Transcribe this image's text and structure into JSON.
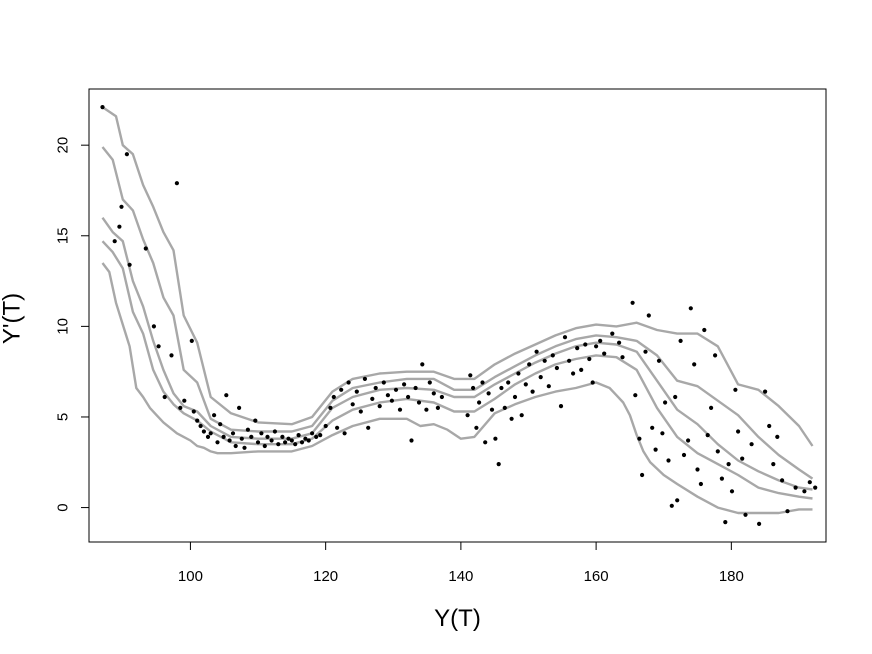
{
  "chart_data": {
    "type": "scatter",
    "title": "",
    "xlabel": "Y(T)",
    "ylabel": "Y'(T)",
    "xlim": [
      85,
      194
    ],
    "ylim": [
      -1.9,
      23.1
    ],
    "x_ticks": [
      100,
      120,
      140,
      160,
      180
    ],
    "y_ticks": [
      0,
      5,
      10,
      15,
      20
    ],
    "grid": false,
    "legend": "none",
    "colors": {
      "points": "#000000",
      "curves": "#a8a8a8"
    },
    "points": [
      [
        87,
        22.1
      ],
      [
        88.8,
        14.7
      ],
      [
        89.5,
        15.5
      ],
      [
        89.8,
        16.6
      ],
      [
        90.6,
        19.5
      ],
      [
        91,
        13.4
      ],
      [
        93.4,
        14.3
      ],
      [
        94.6,
        10
      ],
      [
        95.3,
        8.9
      ],
      [
        96.2,
        6.1
      ],
      [
        97.2,
        8.4
      ],
      [
        98,
        17.9
      ],
      [
        98.5,
        5.5
      ],
      [
        99.1,
        5.9
      ],
      [
        100.2,
        9.2
      ],
      [
        100.5,
        5.3
      ],
      [
        101,
        4.8
      ],
      [
        101.5,
        4.5
      ],
      [
        102,
        4.2
      ],
      [
        102.6,
        3.9
      ],
      [
        103,
        4.1
      ],
      [
        103.5,
        5.1
      ],
      [
        104,
        3.6
      ],
      [
        104.4,
        4.6
      ],
      [
        104.9,
        3.9
      ],
      [
        105.3,
        6.2
      ],
      [
        105.8,
        3.7
      ],
      [
        106.3,
        4.1
      ],
      [
        106.7,
        3.4
      ],
      [
        107.2,
        5.5
      ],
      [
        107.6,
        3.8
      ],
      [
        108,
        3.3
      ],
      [
        108.5,
        4.3
      ],
      [
        109,
        3.9
      ],
      [
        109.6,
        4.8
      ],
      [
        110,
        3.6
      ],
      [
        110.5,
        4.1
      ],
      [
        111,
        3.4
      ],
      [
        111.4,
        3.9
      ],
      [
        112,
        3.7
      ],
      [
        112.5,
        4.2
      ],
      [
        113,
        3.5
      ],
      [
        113.6,
        3.9
      ],
      [
        114,
        3.6
      ],
      [
        114.5,
        3.8
      ],
      [
        115,
        3.7
      ],
      [
        115.5,
        3.5
      ],
      [
        116,
        4
      ],
      [
        116.5,
        3.6
      ],
      [
        117,
        3.8
      ],
      [
        117.5,
        3.7
      ],
      [
        118,
        4.1
      ],
      [
        118.6,
        3.9
      ],
      [
        119.2,
        4
      ],
      [
        120,
        4.5
      ],
      [
        120.7,
        5.5
      ],
      [
        121.2,
        6.1
      ],
      [
        121.7,
        4.4
      ],
      [
        122.3,
        6.5
      ],
      [
        122.8,
        4.1
      ],
      [
        123.4,
        6.9
      ],
      [
        124,
        5.7
      ],
      [
        124.6,
        6.4
      ],
      [
        125.2,
        5.3
      ],
      [
        125.8,
        7.1
      ],
      [
        126.3,
        4.4
      ],
      [
        126.9,
        6
      ],
      [
        127.4,
        6.6
      ],
      [
        128,
        5.6
      ],
      [
        128.6,
        6.9
      ],
      [
        129.2,
        6.2
      ],
      [
        129.8,
        5.9
      ],
      [
        130.4,
        6.5
      ],
      [
        131,
        5.4
      ],
      [
        131.6,
        6.8
      ],
      [
        132.2,
        6.1
      ],
      [
        132.7,
        3.7
      ],
      [
        133.3,
        6.6
      ],
      [
        133.8,
        5.8
      ],
      [
        134.3,
        7.9
      ],
      [
        134.9,
        5.4
      ],
      [
        135.4,
        6.9
      ],
      [
        136,
        6.3
      ],
      [
        136.6,
        5.5
      ],
      [
        137.2,
        6.1
      ],
      [
        141,
        5.1
      ],
      [
        141.4,
        7.3
      ],
      [
        141.8,
        6.6
      ],
      [
        142.3,
        4.4
      ],
      [
        142.7,
        5.8
      ],
      [
        143.2,
        6.9
      ],
      [
        143.6,
        3.6
      ],
      [
        144.1,
        6.3
      ],
      [
        144.6,
        5.4
      ],
      [
        145.1,
        3.8
      ],
      [
        145.6,
        2.4
      ],
      [
        146,
        6.6
      ],
      [
        146.5,
        5.5
      ],
      [
        147,
        6.9
      ],
      [
        147.5,
        4.9
      ],
      [
        148,
        6.1
      ],
      [
        148.5,
        7.4
      ],
      [
        149,
        5.1
      ],
      [
        149.6,
        6.8
      ],
      [
        150.1,
        7.9
      ],
      [
        150.6,
        6.4
      ],
      [
        151.2,
        8.6
      ],
      [
        151.8,
        7.2
      ],
      [
        152.4,
        8.1
      ],
      [
        153,
        6.7
      ],
      [
        153.6,
        8.4
      ],
      [
        154.2,
        7.7
      ],
      [
        154.8,
        5.6
      ],
      [
        155.4,
        9.4
      ],
      [
        156,
        8.1
      ],
      [
        156.6,
        7.4
      ],
      [
        157.2,
        8.8
      ],
      [
        157.8,
        7.6
      ],
      [
        158.4,
        9
      ],
      [
        159,
        8.2
      ],
      [
        159.5,
        6.9
      ],
      [
        160,
        8.9
      ],
      [
        160.6,
        9.2
      ],
      [
        161.2,
        8.5
      ],
      [
        162.4,
        9.6
      ],
      [
        163.4,
        9.1
      ],
      [
        163.9,
        8.3
      ],
      [
        165.4,
        11.3
      ],
      [
        165.8,
        6.2
      ],
      [
        166.4,
        3.8
      ],
      [
        166.8,
        1.8
      ],
      [
        167.3,
        8.6
      ],
      [
        167.8,
        10.6
      ],
      [
        168.3,
        4.4
      ],
      [
        168.8,
        3.2
      ],
      [
        169.3,
        8.1
      ],
      [
        169.8,
        4.1
      ],
      [
        170.2,
        5.8
      ],
      [
        170.7,
        2.6
      ],
      [
        171.2,
        0.1
      ],
      [
        171.7,
        6.1
      ],
      [
        172,
        0.4
      ],
      [
        172.5,
        9.2
      ],
      [
        173,
        2.9
      ],
      [
        173.6,
        3.7
      ],
      [
        174,
        11
      ],
      [
        174.5,
        7.9
      ],
      [
        175,
        2.1
      ],
      [
        175.5,
        1.3
      ],
      [
        176,
        9.8
      ],
      [
        176.5,
        4
      ],
      [
        177,
        5.5
      ],
      [
        177.6,
        8.4
      ],
      [
        178,
        3.1
      ],
      [
        178.6,
        1.6
      ],
      [
        179.1,
        -0.8
      ],
      [
        179.6,
        2.4
      ],
      [
        180.1,
        0.9
      ],
      [
        180.6,
        6.5
      ],
      [
        181,
        4.2
      ],
      [
        181.6,
        2.7
      ],
      [
        182.1,
        -0.4
      ],
      [
        183,
        3.5
      ],
      [
        184.1,
        -0.9
      ],
      [
        185,
        6.4
      ],
      [
        185.6,
        4.5
      ],
      [
        186.2,
        2.4
      ],
      [
        186.8,
        3.9
      ],
      [
        187.5,
        1.5
      ],
      [
        188.3,
        -0.2
      ],
      [
        189.5,
        1.1
      ],
      [
        190.8,
        0.9
      ],
      [
        191.6,
        1.4
      ],
      [
        192.4,
        1.1
      ]
    ],
    "series": [
      {
        "x": [
          87,
          89,
          90,
          91.5,
          93,
          94.5,
          96,
          97.5,
          99,
          101,
          103,
          106,
          110,
          115,
          118,
          121,
          124,
          128,
          132,
          136,
          139,
          142,
          145,
          148,
          151,
          154,
          157,
          160,
          163,
          166,
          169,
          172,
          175,
          178,
          181,
          184,
          187,
          190,
          192
        ],
        "y": [
          22.1,
          21.6,
          20,
          19.5,
          17.8,
          16.6,
          15.2,
          14.2,
          10.6,
          9.1,
          6.1,
          5.2,
          4.7,
          4.6,
          5,
          6.4,
          7.1,
          7.4,
          7.5,
          7.5,
          7.1,
          7.1,
          7.9,
          8.5,
          9,
          9.5,
          9.9,
          10.1,
          10,
          10.2,
          9.8,
          9.6,
          9.6,
          8.9,
          6.8,
          6.5,
          5.6,
          4.5,
          3.4
        ]
      },
      {
        "x": [
          87,
          88.5,
          90,
          91.5,
          93,
          94.5,
          96,
          97.5,
          99,
          101,
          103,
          106,
          110,
          115,
          118,
          121,
          124,
          128,
          132,
          136,
          139,
          142,
          145,
          148,
          151,
          154,
          157,
          160,
          163,
          166,
          169,
          172,
          175,
          178,
          181,
          184,
          187,
          190,
          192
        ],
        "y": [
          19.9,
          19.2,
          17,
          16.4,
          14.8,
          13.5,
          11.6,
          10.6,
          7.6,
          6.9,
          4.9,
          4.3,
          4.2,
          4.2,
          4.5,
          5.9,
          6.6,
          6.9,
          7.1,
          7.1,
          6.5,
          6.5,
          7.2,
          7.8,
          8.4,
          8.9,
          9.3,
          9.5,
          9.4,
          9.2,
          8.4,
          7,
          6.7,
          5.9,
          5.1,
          3.9,
          2.9,
          2.1,
          1.6
        ]
      },
      {
        "x": [
          87,
          88.5,
          90,
          91.5,
          93,
          94.5,
          96,
          97.5,
          99,
          101,
          103,
          106,
          110,
          115,
          118,
          121,
          124,
          128,
          132,
          136,
          139,
          142,
          145,
          148,
          151,
          154,
          157,
          160,
          163,
          166,
          169,
          172,
          175,
          178,
          181,
          184,
          187,
          190,
          192
        ],
        "y": [
          16,
          15.2,
          14.7,
          12.5,
          11.1,
          9.2,
          7.6,
          6.3,
          5.6,
          5.3,
          4.5,
          3.9,
          3.8,
          3.8,
          4.1,
          5.5,
          6.1,
          6.5,
          6.6,
          6.5,
          6.1,
          6.1,
          6.8,
          7.4,
          8,
          8.5,
          8.9,
          9.1,
          9,
          8.6,
          7,
          5.4,
          4.6,
          3.5,
          2.6,
          2,
          1.5,
          1.1,
          1
        ]
      },
      {
        "x": [
          87,
          88.5,
          90,
          91.5,
          93,
          94.5,
          96,
          97.5,
          99,
          101,
          103,
          106,
          110,
          115,
          118,
          121,
          124,
          128,
          132,
          136,
          139,
          142,
          145,
          148,
          151,
          154,
          157,
          160,
          163,
          166,
          169,
          172,
          175,
          178,
          181,
          184,
          187,
          190,
          192
        ],
        "y": [
          14.7,
          14.1,
          13.2,
          10.8,
          9.6,
          7.6,
          6.4,
          5.7,
          5.2,
          4.8,
          4.2,
          3.6,
          3.5,
          3.5,
          3.8,
          4.8,
          5.4,
          5.8,
          6,
          5.8,
          5.3,
          5.3,
          6,
          6.8,
          7.4,
          7.9,
          8.2,
          8.4,
          8.3,
          7.6,
          5.5,
          3.9,
          3,
          2.4,
          1.8,
          1.1,
          0.8,
          0.6,
          0.5
        ]
      },
      {
        "x": [
          87,
          88,
          89,
          90,
          91,
          92,
          93,
          94,
          95,
          96,
          97,
          98,
          99,
          100,
          101,
          102,
          103,
          104,
          106,
          110,
          115,
          118,
          121,
          124,
          128,
          132,
          134,
          136,
          138,
          140,
          142,
          145,
          148,
          151,
          154,
          157,
          160,
          162,
          163,
          164,
          165,
          166,
          167,
          168,
          170,
          172,
          175,
          178,
          181,
          184,
          187,
          190,
          192
        ],
        "y": [
          13.5,
          13,
          11.3,
          10.1,
          8.9,
          6.6,
          6.1,
          5.5,
          5.1,
          4.7,
          4.4,
          4.1,
          3.9,
          3.7,
          3.4,
          3.3,
          3.1,
          3,
          3,
          3.1,
          3.1,
          3.4,
          4,
          4.5,
          4.9,
          4.9,
          4.5,
          4.6,
          4.3,
          3.8,
          3.9,
          5.2,
          5.7,
          6.1,
          6.4,
          6.6,
          6.9,
          6.6,
          6.2,
          5.8,
          5.1,
          4,
          3.1,
          2.5,
          1.8,
          1.3,
          0.6,
          0,
          -0.3,
          -0.3,
          -0.3,
          -0.1,
          -0.1
        ]
      }
    ]
  }
}
